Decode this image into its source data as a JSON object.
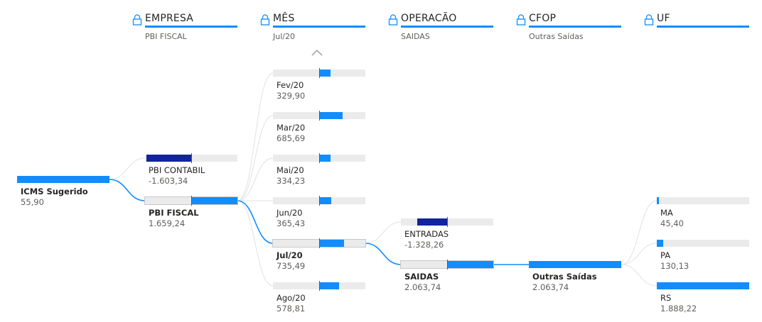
{
  "colors": {
    "accent": "#118DFF",
    "negative": "#12239E",
    "track": "#EBEBEB",
    "link_active": "#118DFF",
    "link_inactive": "#E6E6E6"
  },
  "headers": [
    {
      "title": "EMPRESA",
      "selected": "PBI FISCAL",
      "icon": "lock-icon"
    },
    {
      "title": "MÊS",
      "selected": "Jul/20",
      "icon": "lock-icon"
    },
    {
      "title": "OPERACÃO",
      "selected": "SAIDAS",
      "icon": "lock-icon"
    },
    {
      "title": "CFOP",
      "selected": "Outras Saídas",
      "icon": "lock-icon"
    },
    {
      "title": "UF",
      "selected": "",
      "icon": "lock-icon"
    }
  ],
  "scroll_up_icon": "chevron-up-icon",
  "root": {
    "label": "ICMS Sugerido",
    "value": "55,90",
    "amount": 55.9
  },
  "levels": [
    {
      "name": "empresa",
      "nodes": [
        {
          "label": "PBI CONTABIL",
          "value": "-1.603,34",
          "amount": -1603.34,
          "selected": false
        },
        {
          "label": "PBI FISCAL",
          "value": "1.659,24",
          "amount": 1659.24,
          "selected": true
        }
      ]
    },
    {
      "name": "mes",
      "nodes": [
        {
          "label": "Fev/20",
          "value": "329,90",
          "amount": 329.9,
          "selected": false
        },
        {
          "label": "Mar/20",
          "value": "685,69",
          "amount": 685.69,
          "selected": false
        },
        {
          "label": "Mai/20",
          "value": "334,23",
          "amount": 334.23,
          "selected": false
        },
        {
          "label": "Jun/20",
          "value": "365,43",
          "amount": 365.43,
          "selected": false
        },
        {
          "label": "Jul/20",
          "value": "735,49",
          "amount": 735.49,
          "selected": true
        },
        {
          "label": "Ago/20",
          "value": "578,81",
          "amount": 578.81,
          "selected": false
        }
      ]
    },
    {
      "name": "operacao",
      "nodes": [
        {
          "label": "ENTRADAS",
          "value": "-1.328,26",
          "amount": -1328.26,
          "selected": false
        },
        {
          "label": "SAIDAS",
          "value": "2.063,74",
          "amount": 2063.74,
          "selected": true
        }
      ]
    },
    {
      "name": "cfop",
      "nodes": [
        {
          "label": "Outras Saídas",
          "value": "2.063,74",
          "amount": 2063.74,
          "selected": true
        }
      ]
    },
    {
      "name": "uf",
      "nodes": [
        {
          "label": "MA",
          "value": "45,40",
          "amount": 45.4,
          "selected": false
        },
        {
          "label": "PA",
          "value": "130,13",
          "amount": 130.13,
          "selected": false
        },
        {
          "label": "RS",
          "value": "1.888,22",
          "amount": 1888.22,
          "selected": false
        }
      ]
    }
  ]
}
